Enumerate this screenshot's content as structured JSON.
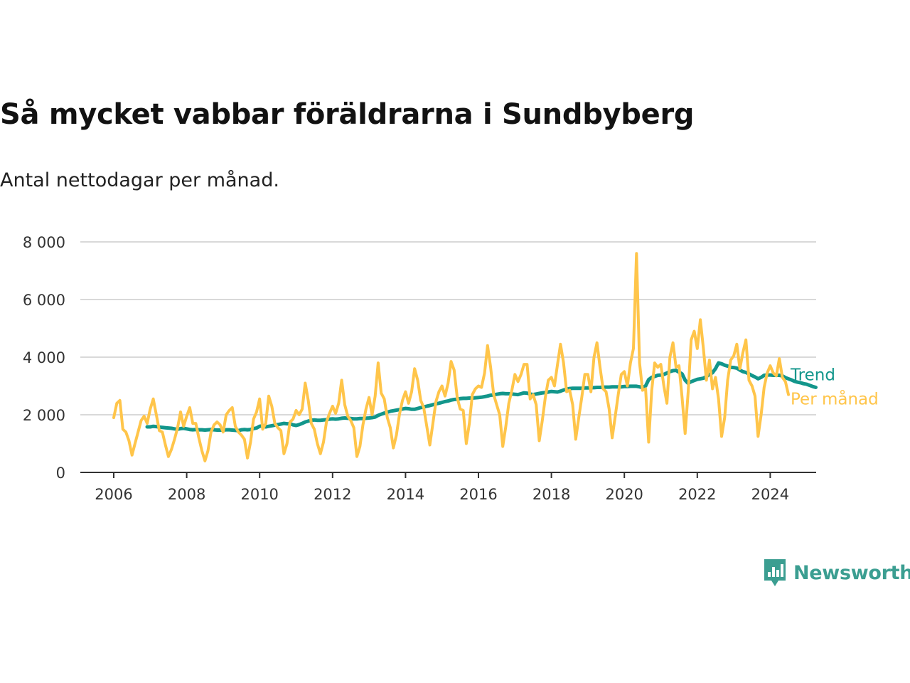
{
  "header": {
    "title": "Så mycket vabbar föräldrarna i Sundbyberg",
    "subtitle": "Antal nettodagar per månad."
  },
  "brand": {
    "name": "Newsworthy",
    "color": "#3b9e91"
  },
  "chart_data": {
    "type": "line",
    "title": "Så mycket vabbar föräldrarna i Sundbyberg",
    "subtitle": "Antal nettodagar per månad.",
    "xlabel": "",
    "ylabel": "",
    "ylim": [
      0,
      8000
    ],
    "yticks": [
      0,
      2000,
      4000,
      6000,
      8000
    ],
    "ytick_labels": [
      "0",
      "2 000",
      "4 000",
      "6 000",
      "8 000"
    ],
    "xlim": [
      "2006-01",
      "2024-05"
    ],
    "xticks": [
      "2006",
      "2008",
      "2010",
      "2012",
      "2014",
      "2016",
      "2018",
      "2020",
      "2022",
      "2024"
    ],
    "grid": true,
    "legend": "inline labels at right end of lines",
    "series": [
      {
        "name": "Per månad",
        "color": "#ffc54a",
        "start": "2006-01",
        "values": [
          1900,
          2400,
          2500,
          1500,
          1400,
          1100,
          600,
          1000,
          1400,
          1800,
          1950,
          1700,
          2200,
          2550,
          2000,
          1450,
          1400,
          950,
          550,
          800,
          1150,
          1550,
          2100,
          1600,
          1950,
          2250,
          1700,
          1700,
          1200,
          750,
          400,
          750,
          1400,
          1650,
          1750,
          1650,
          1400,
          2000,
          2150,
          2250,
          1600,
          1400,
          1300,
          1150,
          500,
          1050,
          1850,
          2100,
          2550,
          1500,
          1700,
          2650,
          2300,
          1700,
          1550,
          1450,
          650,
          1000,
          1750,
          1850,
          2150,
          2000,
          2200,
          3100,
          2500,
          1700,
          1500,
          1000,
          650,
          1050,
          1750,
          2050,
          2300,
          2050,
          2400,
          3200,
          2350,
          1950,
          1800,
          1550,
          550,
          900,
          1650,
          2200,
          2600,
          2000,
          2650,
          3800,
          2750,
          2550,
          1900,
          1550,
          850,
          1300,
          2000,
          2500,
          2800,
          2400,
          2800,
          3600,
          3200,
          2500,
          2250,
          1600,
          950,
          1700,
          2450,
          2800,
          3000,
          2650,
          3100,
          3850,
          3550,
          2600,
          2200,
          2150,
          1000,
          1700,
          2700,
          2900,
          3000,
          2950,
          3450,
          4400,
          3650,
          2700,
          2350,
          2000,
          900,
          1600,
          2400,
          2850,
          3400,
          3150,
          3400,
          3750,
          3750,
          2550,
          2700,
          2350,
          1100,
          1800,
          2600,
          3200,
          3300,
          3000,
          3750,
          4450,
          3800,
          2800,
          2850,
          2350,
          1150,
          1900,
          2600,
          3400,
          3400,
          2800,
          4000,
          4500,
          3650,
          2900,
          2800,
          2200,
          1200,
          1950,
          2700,
          3400,
          3500,
          3000,
          3800,
          4300,
          7600,
          3800,
          2850,
          2900,
          1050,
          2850,
          3800,
          3650,
          3750,
          3000,
          2400,
          4000,
          4500,
          3650,
          3700,
          2600,
          1350,
          2800,
          4600,
          4900,
          4300,
          5300,
          4300,
          3200,
          3900,
          2900,
          3300,
          2550,
          1250,
          1900,
          3200,
          3900,
          4050,
          4450,
          3600,
          4150,
          4600,
          3200,
          3000,
          2650,
          1250,
          2000,
          2950,
          3450,
          3700,
          3450,
          3350,
          3950,
          3300,
          3150,
          2700
        ]
      },
      {
        "name": "Trend",
        "color": "#12968b",
        "start": "2006-12",
        "values": [
          1580,
          1580,
          1600,
          1590,
          1570,
          1560,
          1550,
          1540,
          1530,
          1510,
          1500,
          1520,
          1530,
          1510,
          1490,
          1480,
          1490,
          1480,
          1480,
          1470,
          1480,
          1490,
          1480,
          1470,
          1470,
          1470,
          1480,
          1480,
          1470,
          1460,
          1450,
          1480,
          1490,
          1480,
          1490,
          1520,
          1540,
          1600,
          1620,
          1580,
          1600,
          1620,
          1640,
          1660,
          1680,
          1700,
          1690,
          1690,
          1650,
          1630,
          1660,
          1700,
          1750,
          1780,
          1810,
          1820,
          1810,
          1810,
          1820,
          1830,
          1850,
          1860,
          1850,
          1860,
          1880,
          1890,
          1880,
          1870,
          1860,
          1860,
          1870,
          1870,
          1880,
          1890,
          1900,
          1920,
          1980,
          2020,
          2060,
          2090,
          2120,
          2140,
          2160,
          2180,
          2200,
          2220,
          2210,
          2190,
          2190,
          2220,
          2250,
          2270,
          2300,
          2320,
          2350,
          2380,
          2400,
          2430,
          2460,
          2480,
          2510,
          2530,
          2540,
          2560,
          2570,
          2570,
          2580,
          2580,
          2590,
          2600,
          2610,
          2630,
          2650,
          2680,
          2690,
          2710,
          2730,
          2740,
          2730,
          2730,
          2720,
          2710,
          2700,
          2730,
          2760,
          2750,
          2720,
          2700,
          2720,
          2740,
          2760,
          2770,
          2790,
          2810,
          2800,
          2790,
          2820,
          2860,
          2890,
          2910,
          2920,
          2920,
          2920,
          2920,
          2930,
          2930,
          2940,
          2940,
          2950,
          2950,
          2960,
          2960,
          2960,
          2970,
          2970,
          2970,
          2970,
          2980,
          2980,
          2990,
          2990,
          2990,
          2970,
          2940,
          3000,
          3220,
          3300,
          3330,
          3370,
          3380,
          3400,
          3450,
          3500,
          3530,
          3540,
          3480,
          3420,
          3200,
          3090,
          3150,
          3190,
          3230,
          3250,
          3270,
          3330,
          3400,
          3460,
          3600,
          3800,
          3770,
          3720,
          3690,
          3650,
          3640,
          3620,
          3550,
          3500,
          3470,
          3420,
          3360,
          3310,
          3250,
          3300,
          3370,
          3380,
          3380,
          3370,
          3370,
          3370,
          3350,
          3290,
          3250,
          3210,
          3160,
          3130,
          3110,
          3080,
          3060,
          3020,
          2980,
          2950
        ]
      }
    ]
  }
}
